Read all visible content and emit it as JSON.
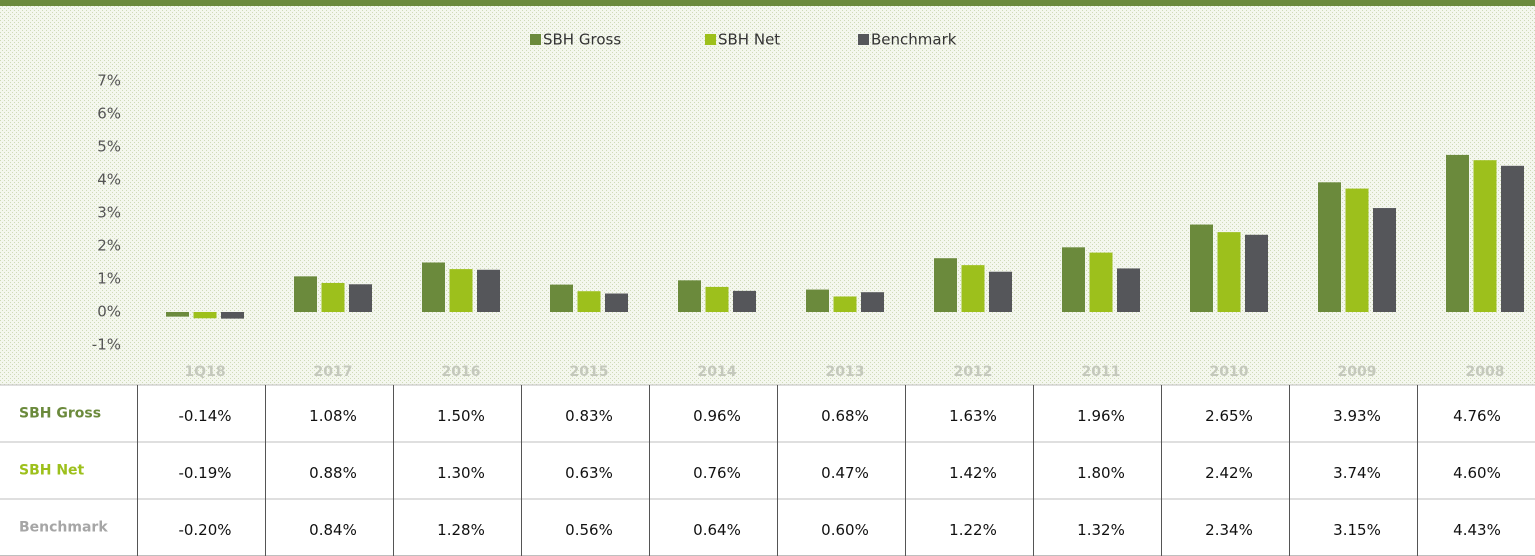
{
  "chart_data": {
    "type": "bar",
    "categories": [
      "1Q18",
      "2017",
      "2016",
      "2015",
      "2014",
      "2013",
      "2012",
      "2011",
      "2010",
      "2009",
      "2008"
    ],
    "series": [
      {
        "name": "SBH Gross",
        "color": "#6b8a3c",
        "values": [
          -0.14,
          1.08,
          1.5,
          0.83,
          0.96,
          0.68,
          1.63,
          1.96,
          2.65,
          3.93,
          4.76
        ],
        "value_labels": [
          "-0.14%",
          "1.08%",
          "1.50%",
          "0.83%",
          "0.96%",
          "0.68%",
          "1.63%",
          "1.96%",
          "2.65%",
          "3.93%",
          "4.76%"
        ]
      },
      {
        "name": "SBH Net",
        "color": "#9dc01c",
        "values": [
          -0.19,
          0.88,
          1.3,
          0.63,
          0.76,
          0.47,
          1.42,
          1.8,
          2.42,
          3.74,
          4.6
        ],
        "value_labels": [
          "-0.19%",
          "0.88%",
          "1.30%",
          "0.63%",
          "0.76%",
          "0.47%",
          "1.42%",
          "1.80%",
          "2.42%",
          "3.74%",
          "4.60%"
        ]
      },
      {
        "name": "Benchmark",
        "color": "#55565a",
        "values": [
          -0.2,
          0.84,
          1.28,
          0.56,
          0.64,
          0.6,
          1.22,
          1.32,
          2.34,
          3.15,
          4.43
        ],
        "value_labels": [
          "-0.20%",
          "0.84%",
          "1.28%",
          "0.56%",
          "0.64%",
          "0.60%",
          "1.22%",
          "1.32%",
          "2.34%",
          "3.15%",
          "4.43%"
        ]
      }
    ],
    "ylim": [
      -1,
      7
    ],
    "yticks": [
      {
        "value": -1,
        "label": "-1%"
      },
      {
        "value": 0,
        "label": "0%"
      },
      {
        "value": 1,
        "label": "1%"
      },
      {
        "value": 2,
        "label": "2%"
      },
      {
        "value": 3,
        "label": "3%"
      },
      {
        "value": 4,
        "label": "4%"
      },
      {
        "value": 5,
        "label": "5%"
      },
      {
        "value": 6,
        "label": "6%"
      },
      {
        "value": 7,
        "label": "7%"
      }
    ],
    "legend": "top"
  }
}
